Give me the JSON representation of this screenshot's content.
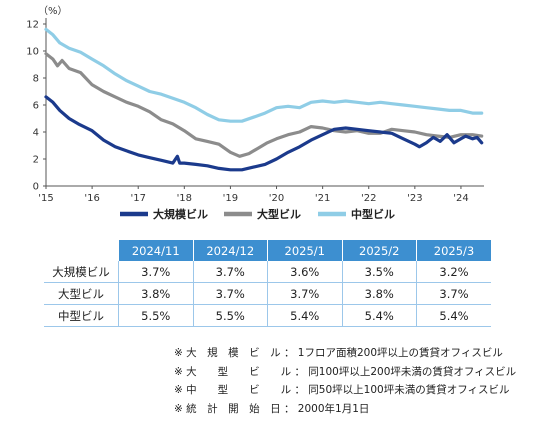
{
  "chart_data": {
    "type": "line",
    "unit_label": "（%）",
    "xlim": [
      2015.0,
      2024.5
    ],
    "ylim": [
      0,
      12
    ],
    "y_ticks": [
      0,
      2,
      4,
      6,
      8,
      10,
      12
    ],
    "x_ticks": [
      {
        "v": 2015,
        "label": "'15"
      },
      {
        "v": 2016,
        "label": "'16"
      },
      {
        "v": 2017,
        "label": "'17"
      },
      {
        "v": 2018,
        "label": "'18"
      },
      {
        "v": 2019,
        "label": "'19"
      },
      {
        "v": 2020,
        "label": "'20"
      },
      {
        "v": 2021,
        "label": "'21"
      },
      {
        "v": 2022,
        "label": "'22"
      },
      {
        "v": 2023,
        "label": "'23"
      },
      {
        "v": 2024,
        "label": "'24"
      }
    ],
    "grid": false,
    "legend_position": "bottom",
    "series": [
      {
        "name": "大規模ビル",
        "color": "#1b3a8c",
        "points": [
          [
            2015.0,
            6.6
          ],
          [
            2015.15,
            6.2
          ],
          [
            2015.3,
            5.6
          ],
          [
            2015.5,
            5.0
          ],
          [
            2015.7,
            4.6
          ],
          [
            2016.0,
            4.1
          ],
          [
            2016.25,
            3.4
          ],
          [
            2016.5,
            2.9
          ],
          [
            2016.75,
            2.6
          ],
          [
            2017.0,
            2.3
          ],
          [
            2017.25,
            2.1
          ],
          [
            2017.5,
            1.9
          ],
          [
            2017.75,
            1.7
          ],
          [
            2017.85,
            2.2
          ],
          [
            2017.9,
            1.7
          ],
          [
            2018.0,
            1.7
          ],
          [
            2018.25,
            1.6
          ],
          [
            2018.5,
            1.5
          ],
          [
            2018.75,
            1.3
          ],
          [
            2019.0,
            1.2
          ],
          [
            2019.25,
            1.2
          ],
          [
            2019.5,
            1.4
          ],
          [
            2019.75,
            1.6
          ],
          [
            2020.0,
            2.0
          ],
          [
            2020.25,
            2.5
          ],
          [
            2020.5,
            2.9
          ],
          [
            2020.75,
            3.4
          ],
          [
            2021.0,
            3.8
          ],
          [
            2021.25,
            4.2
          ],
          [
            2021.5,
            4.3
          ],
          [
            2021.75,
            4.2
          ],
          [
            2022.0,
            4.1
          ],
          [
            2022.25,
            4.0
          ],
          [
            2022.5,
            3.9
          ],
          [
            2022.75,
            3.5
          ],
          [
            2023.0,
            3.1
          ],
          [
            2023.1,
            2.9
          ],
          [
            2023.25,
            3.2
          ],
          [
            2023.4,
            3.6
          ],
          [
            2023.55,
            3.3
          ],
          [
            2023.7,
            3.8
          ],
          [
            2023.85,
            3.2
          ],
          [
            2024.0,
            3.5
          ],
          [
            2024.1,
            3.7
          ],
          [
            2024.25,
            3.5
          ],
          [
            2024.35,
            3.6
          ],
          [
            2024.45,
            3.2
          ]
        ]
      },
      {
        "name": "大型ビル",
        "color": "#8c8c8c",
        "points": [
          [
            2015.0,
            9.8
          ],
          [
            2015.15,
            9.4
          ],
          [
            2015.25,
            8.9
          ],
          [
            2015.35,
            9.3
          ],
          [
            2015.5,
            8.7
          ],
          [
            2015.75,
            8.4
          ],
          [
            2016.0,
            7.5
          ],
          [
            2016.25,
            7.0
          ],
          [
            2016.5,
            6.6
          ],
          [
            2016.75,
            6.2
          ],
          [
            2017.0,
            5.9
          ],
          [
            2017.25,
            5.5
          ],
          [
            2017.5,
            4.9
          ],
          [
            2017.75,
            4.6
          ],
          [
            2018.0,
            4.1
          ],
          [
            2018.25,
            3.5
          ],
          [
            2018.5,
            3.3
          ],
          [
            2018.75,
            3.1
          ],
          [
            2019.0,
            2.5
          ],
          [
            2019.2,
            2.2
          ],
          [
            2019.4,
            2.4
          ],
          [
            2019.6,
            2.8
          ],
          [
            2019.8,
            3.2
          ],
          [
            2020.0,
            3.5
          ],
          [
            2020.25,
            3.8
          ],
          [
            2020.5,
            4.0
          ],
          [
            2020.75,
            4.4
          ],
          [
            2021.0,
            4.3
          ],
          [
            2021.25,
            4.1
          ],
          [
            2021.5,
            4.0
          ],
          [
            2021.75,
            4.1
          ],
          [
            2022.0,
            3.9
          ],
          [
            2022.25,
            3.9
          ],
          [
            2022.5,
            4.2
          ],
          [
            2022.75,
            4.1
          ],
          [
            2023.0,
            4.0
          ],
          [
            2023.25,
            3.8
          ],
          [
            2023.5,
            3.7
          ],
          [
            2023.75,
            3.6
          ],
          [
            2024.0,
            3.8
          ],
          [
            2024.25,
            3.8
          ],
          [
            2024.45,
            3.7
          ]
        ]
      },
      {
        "name": "中型ビル",
        "color": "#8fcde6",
        "points": [
          [
            2015.0,
            11.6
          ],
          [
            2015.15,
            11.2
          ],
          [
            2015.3,
            10.6
          ],
          [
            2015.5,
            10.2
          ],
          [
            2015.75,
            9.9
          ],
          [
            2016.0,
            9.4
          ],
          [
            2016.25,
            8.9
          ],
          [
            2016.5,
            8.3
          ],
          [
            2016.75,
            7.8
          ],
          [
            2017.0,
            7.4
          ],
          [
            2017.25,
            7.0
          ],
          [
            2017.5,
            6.8
          ],
          [
            2017.75,
            6.5
          ],
          [
            2018.0,
            6.2
          ],
          [
            2018.25,
            5.8
          ],
          [
            2018.5,
            5.3
          ],
          [
            2018.75,
            4.9
          ],
          [
            2019.0,
            4.8
          ],
          [
            2019.25,
            4.8
          ],
          [
            2019.5,
            5.1
          ],
          [
            2019.75,
            5.4
          ],
          [
            2020.0,
            5.8
          ],
          [
            2020.25,
            5.9
          ],
          [
            2020.5,
            5.8
          ],
          [
            2020.75,
            6.2
          ],
          [
            2021.0,
            6.3
          ],
          [
            2021.25,
            6.2
          ],
          [
            2021.5,
            6.3
          ],
          [
            2021.75,
            6.2
          ],
          [
            2022.0,
            6.1
          ],
          [
            2022.25,
            6.2
          ],
          [
            2022.5,
            6.1
          ],
          [
            2022.75,
            6.0
          ],
          [
            2023.0,
            5.9
          ],
          [
            2023.25,
            5.8
          ],
          [
            2023.5,
            5.7
          ],
          [
            2023.75,
            5.6
          ],
          [
            2024.0,
            5.6
          ],
          [
            2024.25,
            5.4
          ],
          [
            2024.45,
            5.4
          ]
        ]
      }
    ]
  },
  "table": {
    "columns": [
      "2024/11",
      "2024/12",
      "2025/1",
      "2025/2",
      "2025/3"
    ],
    "rows": [
      {
        "label": "大規模ビル",
        "values": [
          "3.7%",
          "3.7%",
          "3.6%",
          "3.5%",
          "3.2%"
        ]
      },
      {
        "label": "大型ビル",
        "values": [
          "3.8%",
          "3.7%",
          "3.7%",
          "3.8%",
          "3.7%"
        ]
      },
      {
        "label": "中型ビル",
        "values": [
          "5.5%",
          "5.5%",
          "5.4%",
          "5.4%",
          "5.4%"
        ]
      }
    ]
  },
  "notes": [
    "※ 大　規　模　ビ　ル ： 1フロア面積200坪以上の賃貸オフィスビル",
    "※ 大　　型　　ビ　　ル ： 同100坪以上200坪未満の賃貸オフィスビル",
    "※ 中　　型　　ビ　　ル ： 同50坪以上100坪未満の賃貸オフィスビル",
    "※ 統　計　開　始　日 ： 2000年1月1日"
  ]
}
